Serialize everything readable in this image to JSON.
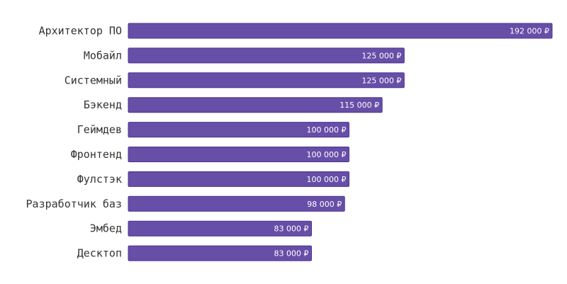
{
  "chart_data": {
    "type": "bar",
    "orientation": "horizontal",
    "categories": [
      "Архитектор ПО",
      "Мобайл",
      "Системный",
      "Бэкенд",
      "Геймдев",
      "Фронтенд",
      "Фулстэк",
      "Разработчик баз",
      "Эмбед",
      "Десктоп"
    ],
    "values": [
      192000,
      125000,
      125000,
      115000,
      100000,
      100000,
      100000,
      98000,
      83000,
      83000
    ],
    "value_labels": [
      "192 000 ₽",
      "125 000 ₽",
      "125 000 ₽",
      "115 000 ₽",
      "100 000 ₽",
      "100 000 ₽",
      "100 000 ₽",
      "98 000 ₽",
      "83 000 ₽",
      "83 000 ₽"
    ],
    "title": "",
    "xlabel": "",
    "ylabel": "",
    "xlim": [
      0,
      192000
    ],
    "grid": false,
    "legend": "none",
    "colors": {
      "bar_fill": "#674ea7",
      "bar_stroke": "#4a3590",
      "value_text": "#ffffff",
      "category_text": "#333333"
    }
  }
}
